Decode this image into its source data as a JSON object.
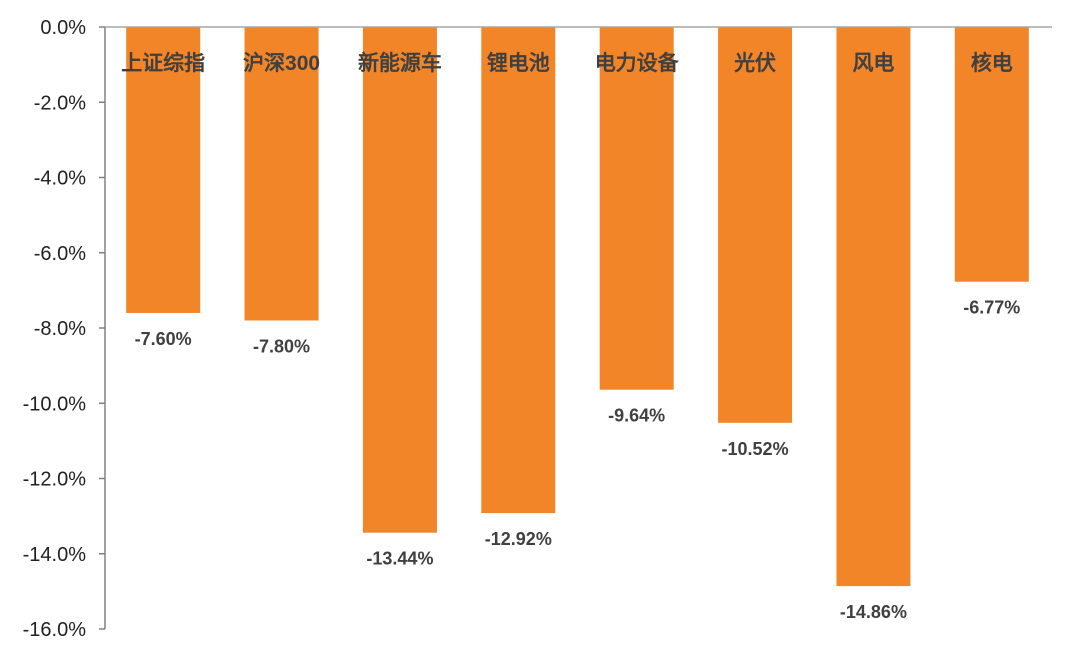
{
  "chart_data": {
    "type": "bar",
    "title": "",
    "xlabel": "",
    "ylabel": "",
    "categories": [
      "上证综指",
      "沪深300",
      "新能源车",
      "锂电池",
      "电力设备",
      "光伏",
      "风电",
      "核电"
    ],
    "values": [
      -7.6,
      -7.8,
      -13.44,
      -12.92,
      -9.64,
      -10.52,
      -14.86,
      -6.77
    ],
    "value_labels": [
      "-7.60%",
      "-7.80%",
      "-13.44%",
      "-12.92%",
      "-9.64%",
      "-10.52%",
      "-14.86%",
      "-6.77%"
    ],
    "ylim": [
      -16.0,
      0.0
    ],
    "yticks": [
      0,
      -2,
      -4,
      -6,
      -8,
      -10,
      -12,
      -14,
      -16
    ],
    "ytick_labels": [
      "0.0%",
      "-2.0%",
      "-4.0%",
      "-6.0%",
      "-8.0%",
      "-10.0%",
      "-12.0%",
      "-14.0%",
      "-16.0%"
    ],
    "bar_color": "#F28528",
    "grid": false,
    "legend": "none"
  }
}
